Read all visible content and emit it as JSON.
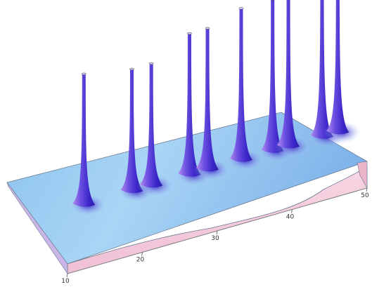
{
  "chart_data": {
    "type": "surface3d",
    "title": "",
    "xlabel": "",
    "ylabel": "",
    "zlabel": "",
    "xlim": [
      10,
      50
    ],
    "x_ticks": [
      {
        "value": 10,
        "label": "10"
      },
      {
        "value": 20,
        "label": "20"
      },
      {
        "value": 30,
        "label": "30"
      },
      {
        "value": 40,
        "label": "40"
      },
      {
        "value": 50,
        "label": "50"
      }
    ],
    "peaks": [
      {
        "x": 12.0,
        "height": 0.86
      },
      {
        "x": 18.4,
        "height": 0.8
      },
      {
        "x": 21.0,
        "height": 0.8
      },
      {
        "x": 26.1,
        "height": 0.93
      },
      {
        "x": 28.5,
        "height": 0.93
      },
      {
        "x": 33.0,
        "height": 1.0
      },
      {
        "x": 37.2,
        "height": 1.0
      },
      {
        "x": 39.3,
        "height": 1.0
      },
      {
        "x": 43.8,
        "height": 1.08
      },
      {
        "x": 45.9,
        "height": 1.08
      }
    ],
    "colors": {
      "surface_light": "#d6ecff",
      "surface_mid": "#8fc7f2",
      "surface_dark": "#7bb0ea",
      "spike_light": "#b48af0",
      "spike_dark": "#3a24c8",
      "side_face": "#f4c7d9",
      "edge": "#555555"
    }
  }
}
